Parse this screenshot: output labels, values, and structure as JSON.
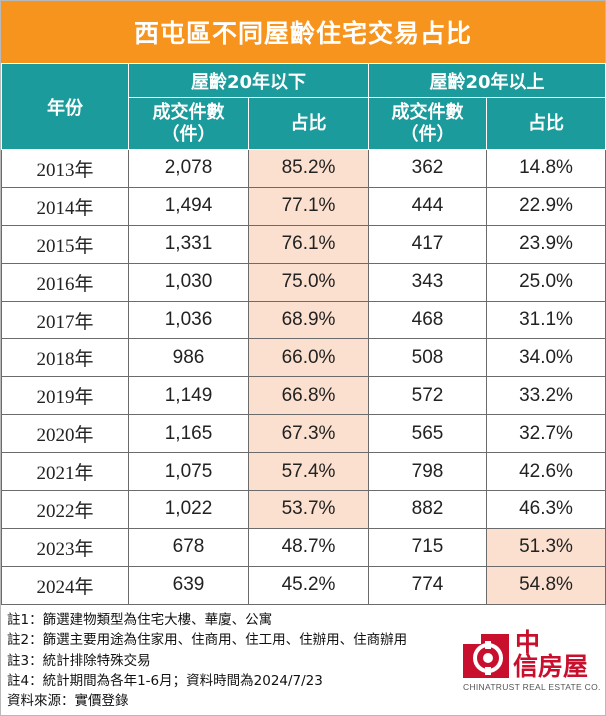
{
  "title": "西屯區不同屋齡住宅交易占比",
  "header": {
    "year": "年份",
    "group_under": "屋齡20年以下",
    "group_over": "屋齡20年以上",
    "count_line1": "成交件數",
    "count_line2": "（件）",
    "share": "占比"
  },
  "rows": [
    {
      "year": "2013年",
      "under_count": "2,078",
      "under_share": "85.2%",
      "over_count": "362",
      "over_share": "14.8%"
    },
    {
      "year": "2014年",
      "under_count": "1,494",
      "under_share": "77.1%",
      "over_count": "444",
      "over_share": "22.9%"
    },
    {
      "year": "2015年",
      "under_count": "1,331",
      "under_share": "76.1%",
      "over_count": "417",
      "over_share": "23.9%"
    },
    {
      "year": "2016年",
      "under_count": "1,030",
      "under_share": "75.0%",
      "over_count": "343",
      "over_share": "25.0%"
    },
    {
      "year": "2017年",
      "under_count": "1,036",
      "under_share": "68.9%",
      "over_count": "468",
      "over_share": "31.1%"
    },
    {
      "year": "2018年",
      "under_count": "986",
      "under_share": "66.0%",
      "over_count": "508",
      "over_share": "34.0%"
    },
    {
      "year": "2019年",
      "under_count": "1,149",
      "under_share": "66.8%",
      "over_count": "572",
      "over_share": "33.2%"
    },
    {
      "year": "2020年",
      "under_count": "1,165",
      "under_share": "67.3%",
      "over_count": "565",
      "over_share": "32.7%"
    },
    {
      "year": "2021年",
      "under_count": "1,075",
      "under_share": "57.4%",
      "over_count": "798",
      "over_share": "42.6%"
    },
    {
      "year": "2022年",
      "under_count": "1,022",
      "under_share": "53.7%",
      "over_count": "882",
      "over_share": "46.3%"
    },
    {
      "year": "2023年",
      "under_count": "678",
      "under_share": "48.7%",
      "over_count": "715",
      "over_share": "51.3%"
    },
    {
      "year": "2024年",
      "under_count": "639",
      "under_share": "45.2%",
      "over_count": "774",
      "over_share": "54.8%"
    }
  ],
  "notes": [
    "註1：篩選建物類型為住宅大樓、華廈、公寓",
    "註2：篩選主要用途為住家用、住商用、住工用、住辦用、住商辦用",
    "註3：統計排除特殊交易",
    "註4：統計期間為各年1-6月；資料時間為2024/7/23",
    "資料來源：實價登錄"
  ],
  "logo": {
    "line1": "中",
    "line2": "信房屋",
    "sub": "CHINATRUST REAL ESTATE CO."
  },
  "colors": {
    "title_bg": "#f7941d",
    "header_bg": "#1b9b9b",
    "highlight": "#fbe0cf",
    "logo_red": "#c8102e"
  }
}
